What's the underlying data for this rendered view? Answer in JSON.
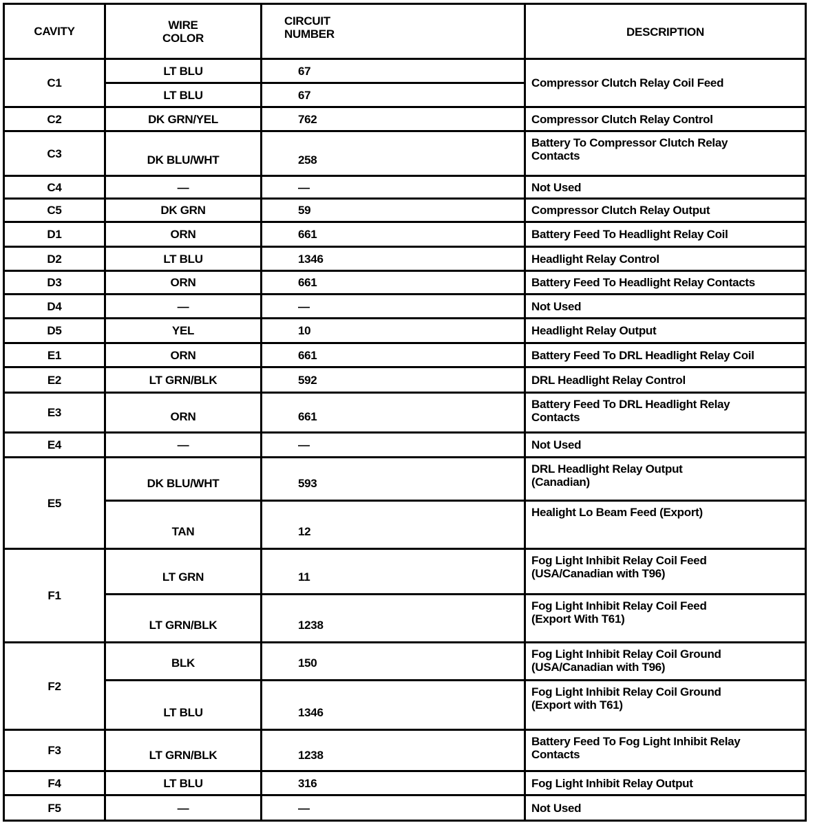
{
  "headers": {
    "cavity": "CAVITY",
    "wire_color": "WIRE\nCOLOR",
    "circuit_number": "CIRCUIT\nNUMBER",
    "description": "DESCRIPTION"
  },
  "rows": [
    {
      "cavity": "C1",
      "shared_description": "Compressor Clutch Relay Coil Feed",
      "wires": [
        {
          "color": "LT BLU",
          "circuit": "67"
        },
        {
          "color": "LT BLU",
          "circuit": "67"
        }
      ]
    },
    {
      "cavity": "C2",
      "wires": [
        {
          "color": "DK GRN/YEL",
          "circuit": "762",
          "description": "Compressor Clutch Relay Control"
        }
      ]
    },
    {
      "cavity": "C3",
      "wires": [
        {
          "color": "DK BLU/WHT",
          "circuit": "258",
          "description": "Battery To Compressor Clutch Relay\nContacts"
        }
      ]
    },
    {
      "cavity": "C4",
      "wires": [
        {
          "color": "—",
          "circuit": "—",
          "description": "Not Used"
        }
      ]
    },
    {
      "cavity": "C5",
      "wires": [
        {
          "color": "DK GRN",
          "circuit": "59",
          "description": "Compressor Clutch Relay Output"
        }
      ]
    },
    {
      "cavity": "D1",
      "wires": [
        {
          "color": "ORN",
          "circuit": "661",
          "description": "Battery Feed To Headlight Relay Coil"
        }
      ]
    },
    {
      "cavity": "D2",
      "wires": [
        {
          "color": "LT BLU",
          "circuit": "1346",
          "description": "Headlight Relay Control"
        }
      ]
    },
    {
      "cavity": "D3",
      "wires": [
        {
          "color": "ORN",
          "circuit": "661",
          "description": "Battery Feed To Headlight Relay Contacts"
        }
      ]
    },
    {
      "cavity": "D4",
      "wires": [
        {
          "color": "—",
          "circuit": "—",
          "description": "Not Used"
        }
      ]
    },
    {
      "cavity": "D5",
      "wires": [
        {
          "color": "YEL",
          "circuit": "10",
          "description": "Headlight Relay Output"
        }
      ]
    },
    {
      "cavity": "E1",
      "wires": [
        {
          "color": "ORN",
          "circuit": "661",
          "description": "Battery Feed To DRL Headlight Relay Coil"
        }
      ]
    },
    {
      "cavity": "E2",
      "wires": [
        {
          "color": "LT GRN/BLK",
          "circuit": "592",
          "description": "DRL Headlight Relay Control"
        }
      ]
    },
    {
      "cavity": "E3",
      "wires": [
        {
          "color": "ORN",
          "circuit": "661",
          "description": "Battery Feed To DRL Headlight Relay\nContacts"
        }
      ]
    },
    {
      "cavity": "E4",
      "wires": [
        {
          "color": "—",
          "circuit": "—",
          "description": "Not Used"
        }
      ]
    },
    {
      "cavity": "E5",
      "wires": [
        {
          "color": "DK BLU/WHT",
          "circuit": "593",
          "description": "DRL Headlight Relay Output\n(Canadian)"
        },
        {
          "color": "TAN",
          "circuit": "12",
          "description": "Healight Lo Beam Feed (Export)"
        }
      ]
    },
    {
      "cavity": "F1",
      "wires": [
        {
          "color": "LT GRN",
          "circuit": "11",
          "description": "Fog Light Inhibit Relay Coil Feed\n(USA/Canadian with T96)"
        },
        {
          "color": "LT GRN/BLK",
          "circuit": "1238",
          "description": "Fog Light Inhibit Relay Coil Feed\n(Export With T61)"
        }
      ]
    },
    {
      "cavity": "F2",
      "wires": [
        {
          "color": "BLK",
          "circuit": "150",
          "description": "Fog Light Inhibit Relay Coil Ground\n(USA/Canadian with T96)"
        },
        {
          "color": "LT BLU",
          "circuit": "1346",
          "description": "Fog Light Inhibit Relay Coil Ground\n(Export with T61)"
        }
      ]
    },
    {
      "cavity": "F3",
      "wires": [
        {
          "color": "LT GRN/BLK",
          "circuit": "1238",
          "description": "Battery Feed To Fog Light Inhibit Relay\nContacts"
        }
      ]
    },
    {
      "cavity": "F4",
      "wires": [
        {
          "color": "LT BLU",
          "circuit": "316",
          "description": "Fog Light Inhibit Relay Output"
        }
      ]
    },
    {
      "cavity": "F5",
      "wires": [
        {
          "color": "—",
          "circuit": "—",
          "description": "Not Used"
        }
      ]
    }
  ]
}
